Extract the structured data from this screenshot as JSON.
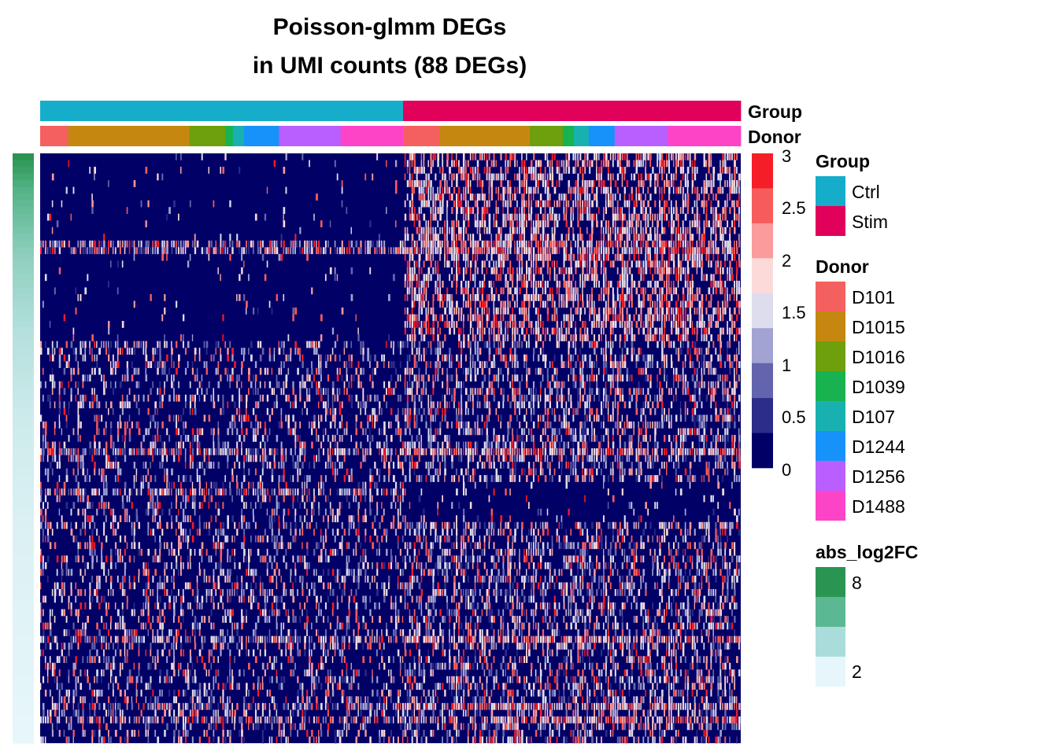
{
  "chart_data": {
    "type": "heatmap",
    "title": [
      "Poisson-glmm DEGs",
      "in UMI counts (88 DEGs)"
    ],
    "n_rows": 88,
    "row_annotation": {
      "name": "abs_log2FC",
      "legend_ticks": [
        "8",
        "2"
      ],
      "range": [
        2,
        8
      ],
      "colors": [
        "#2A9552",
        "#5BB892",
        "#A9DCDB",
        "#E7F6FA"
      ]
    },
    "column_annotations": [
      {
        "name": "Group",
        "levels": [
          {
            "label": "Ctrl",
            "color": "#16ADCB"
          },
          {
            "label": "Stim",
            "color": "#E1005A"
          }
        ],
        "blocks": [
          {
            "level": "Ctrl",
            "share": 0.518
          },
          {
            "level": "Stim",
            "share": 0.482
          }
        ]
      },
      {
        "name": "Donor",
        "levels": [
          {
            "label": "D101",
            "color": "#F4605F"
          },
          {
            "label": "D1015",
            "color": "#C5870F"
          },
          {
            "label": "D1016",
            "color": "#6E9F0C"
          },
          {
            "label": "D1039",
            "color": "#19B250"
          },
          {
            "label": "D107",
            "color": "#19B1B0"
          },
          {
            "label": "D1244",
            "color": "#1892FB"
          },
          {
            "label": "D1256",
            "color": "#B95FFF"
          },
          {
            "label": "D1488",
            "color": "#FD44C7"
          }
        ],
        "blocks": [
          {
            "level": "D101",
            "share": 0.04
          },
          {
            "level": "D1015",
            "share": 0.173
          },
          {
            "level": "D1016",
            "share": 0.051
          },
          {
            "level": "D1039",
            "share": 0.011
          },
          {
            "level": "D107",
            "share": 0.016
          },
          {
            "level": "D1244",
            "share": 0.05
          },
          {
            "level": "D1256",
            "share": 0.088
          },
          {
            "level": "D1488",
            "share": 0.089
          },
          {
            "level": "D101",
            "share": 0.052
          },
          {
            "level": "D1015",
            "share": 0.129
          },
          {
            "level": "D1016",
            "share": 0.047
          },
          {
            "level": "D1039",
            "share": 0.016
          },
          {
            "level": "D107",
            "share": 0.021
          },
          {
            "level": "D1244",
            "share": 0.037
          },
          {
            "level": "D1256",
            "share": 0.076
          },
          {
            "level": "D1488",
            "share": 0.104
          }
        ]
      }
    ],
    "color_scale": {
      "ticks": [
        "3",
        "2.5",
        "2",
        "1.5",
        "1",
        "0.5",
        "0"
      ],
      "range": [
        0,
        3
      ],
      "colors": [
        "#000066",
        "#2C2C8A",
        "#6464AE",
        "#A3A3D3",
        "#DDDDEE",
        "#FDDADA",
        "#FB9B9B",
        "#F75C5C",
        "#F51D27"
      ]
    }
  }
}
